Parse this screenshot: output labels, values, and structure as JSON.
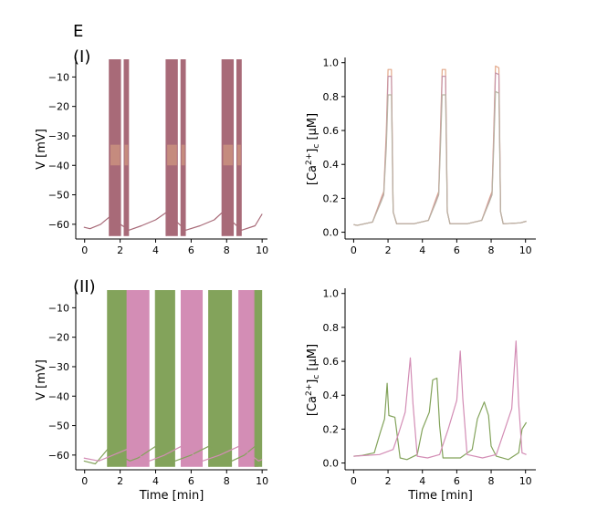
{
  "figure": {
    "panel_letter": "E",
    "row_labels": [
      "(I)",
      "(II)"
    ]
  },
  "colors": {
    "burst_main": "#a86a78",
    "burst_light": "#e9b485",
    "green": "#83a35b",
    "pink": "#d38db5",
    "ca_top": "#e3a88a",
    "ca_mid": "#c694a8",
    "ca_low": "#b9b3a3",
    "axis": "#000000"
  },
  "chart_data": [
    {
      "id": "I-voltage",
      "type": "line",
      "ylabel": "V [mV]",
      "xlabel": "",
      "xlim": [
        -0.5,
        10.3
      ],
      "ylim": [
        -65,
        -4
      ],
      "xticks": [
        0,
        2,
        4,
        6,
        8,
        10
      ],
      "yticks": [
        -60,
        -50,
        -40,
        -30,
        -20,
        -10
      ],
      "bursts": [
        {
          "name": "burst-1",
          "start": 1.4,
          "end": 2.5,
          "gap": [
            2.05,
            2.2
          ],
          "color": "#a86a78",
          "top": -4,
          "bottom": -64
        },
        {
          "name": "burst-2",
          "start": 4.6,
          "end": 5.7,
          "gap": [
            5.25,
            5.4
          ],
          "color": "#a86a78",
          "top": -4,
          "bottom": -64
        },
        {
          "name": "burst-3",
          "start": 7.75,
          "end": 8.85,
          "gap": [
            8.4,
            8.55
          ],
          "color": "#a86a78",
          "top": -4,
          "bottom": -64
        }
      ],
      "baseline": {
        "color": "#a86a78",
        "points": [
          [
            -0.05,
            -61
          ],
          [
            0.3,
            -61.5
          ],
          [
            0.9,
            -60
          ],
          [
            1.4,
            -57.5
          ],
          [
            2.5,
            -62
          ],
          [
            3.2,
            -60.5
          ],
          [
            4.0,
            -58.5
          ],
          [
            4.6,
            -56
          ],
          [
            5.7,
            -62
          ],
          [
            6.5,
            -60.5
          ],
          [
            7.3,
            -58.5
          ],
          [
            7.75,
            -56
          ],
          [
            8.85,
            -62
          ],
          [
            9.6,
            -60.5
          ],
          [
            10.0,
            -56.5
          ]
        ]
      }
    },
    {
      "id": "I-calcium",
      "type": "line",
      "ylabel": "[Ca2+]c [μM]",
      "xlabel": "",
      "xlim": [
        -0.5,
        10.6
      ],
      "ylim": [
        -0.04,
        1.02
      ],
      "xticks": [
        0,
        2,
        4,
        6,
        8,
        10
      ],
      "yticks": [
        0.0,
        0.2,
        0.4,
        0.6,
        0.8,
        1.0
      ],
      "series": [
        {
          "name": "ca-trace-top",
          "color": "#e3a88a",
          "points": [
            [
              0,
              0.045
            ],
            [
              0.2,
              0.04
            ],
            [
              1.1,
              0.06
            ],
            [
              1.6,
              0.2
            ],
            [
              1.75,
              0.24
            ],
            [
              1.9,
              0.6
            ],
            [
              2.0,
              0.96
            ],
            [
              2.2,
              0.96
            ],
            [
              2.3,
              0.12
            ],
            [
              2.5,
              0.05
            ],
            [
              3.5,
              0.05
            ],
            [
              4.35,
              0.07
            ],
            [
              4.8,
              0.2
            ],
            [
              4.95,
              0.24
            ],
            [
              5.05,
              0.6
            ],
            [
              5.15,
              0.96
            ],
            [
              5.35,
              0.96
            ],
            [
              5.45,
              0.12
            ],
            [
              5.6,
              0.05
            ],
            [
              6.6,
              0.05
            ],
            [
              7.45,
              0.07
            ],
            [
              7.9,
              0.2
            ],
            [
              8.05,
              0.24
            ],
            [
              8.15,
              0.6
            ],
            [
              8.25,
              0.98
            ],
            [
              8.45,
              0.97
            ],
            [
              8.55,
              0.12
            ],
            [
              8.7,
              0.05
            ],
            [
              9.7,
              0.055
            ],
            [
              10.05,
              0.065
            ]
          ]
        },
        {
          "name": "ca-trace-mid",
          "color": "#c694a8",
          "points": [
            [
              0,
              0.045
            ],
            [
              0.2,
              0.04
            ],
            [
              1.1,
              0.06
            ],
            [
              1.6,
              0.19
            ],
            [
              1.75,
              0.23
            ],
            [
              1.9,
              0.55
            ],
            [
              2.0,
              0.92
            ],
            [
              2.2,
              0.92
            ],
            [
              2.3,
              0.12
            ],
            [
              2.5,
              0.05
            ],
            [
              3.5,
              0.05
            ],
            [
              4.35,
              0.07
            ],
            [
              4.8,
              0.19
            ],
            [
              4.95,
              0.23
            ],
            [
              5.05,
              0.55
            ],
            [
              5.15,
              0.92
            ],
            [
              5.35,
              0.92
            ],
            [
              5.45,
              0.12
            ],
            [
              5.6,
              0.05
            ],
            [
              6.6,
              0.05
            ],
            [
              7.45,
              0.07
            ],
            [
              7.9,
              0.19
            ],
            [
              8.05,
              0.23
            ],
            [
              8.15,
              0.55
            ],
            [
              8.25,
              0.94
            ],
            [
              8.45,
              0.93
            ],
            [
              8.55,
              0.12
            ],
            [
              8.7,
              0.05
            ],
            [
              9.7,
              0.055
            ],
            [
              10.05,
              0.065
            ]
          ]
        },
        {
          "name": "ca-trace-low",
          "color": "#b9b3a3",
          "points": [
            [
              0,
              0.045
            ],
            [
              0.2,
              0.04
            ],
            [
              1.1,
              0.06
            ],
            [
              1.6,
              0.18
            ],
            [
              1.75,
              0.22
            ],
            [
              1.9,
              0.5
            ],
            [
              2.0,
              0.81
            ],
            [
              2.2,
              0.81
            ],
            [
              2.3,
              0.12
            ],
            [
              2.5,
              0.05
            ],
            [
              3.5,
              0.05
            ],
            [
              4.35,
              0.07
            ],
            [
              4.8,
              0.18
            ],
            [
              4.95,
              0.22
            ],
            [
              5.05,
              0.5
            ],
            [
              5.15,
              0.81
            ],
            [
              5.35,
              0.81
            ],
            [
              5.45,
              0.12
            ],
            [
              5.6,
              0.05
            ],
            [
              6.6,
              0.05
            ],
            [
              7.45,
              0.07
            ],
            [
              7.9,
              0.18
            ],
            [
              8.05,
              0.22
            ],
            [
              8.15,
              0.5
            ],
            [
              8.25,
              0.83
            ],
            [
              8.45,
              0.82
            ],
            [
              8.55,
              0.12
            ],
            [
              8.7,
              0.05
            ],
            [
              9.7,
              0.055
            ],
            [
              10.05,
              0.065
            ]
          ]
        }
      ]
    },
    {
      "id": "II-voltage",
      "type": "line",
      "ylabel": "V [mV]",
      "xlabel": "Time [min]",
      "xlim": [
        -0.5,
        10.3
      ],
      "ylim": [
        -65,
        -4
      ],
      "xticks": [
        0,
        2,
        4,
        6,
        8,
        10
      ],
      "yticks": [
        -60,
        -50,
        -40,
        -30,
        -20,
        -10
      ],
      "bursts": [
        {
          "name": "green-burst-1",
          "start": 1.3,
          "end": 2.55,
          "color": "#83a35b",
          "top": -4,
          "bottom": -64
        },
        {
          "name": "pink-burst-1",
          "start": 2.4,
          "end": 3.65,
          "color": "#d38db5",
          "top": -4,
          "bottom": -64
        },
        {
          "name": "green-burst-2",
          "start": 4.0,
          "end": 5.1,
          "color": "#83a35b",
          "top": -4,
          "bottom": -64
        },
        {
          "name": "pink-burst-2",
          "start": 5.45,
          "end": 6.65,
          "color": "#d38db5",
          "top": -4,
          "bottom": -64
        },
        {
          "name": "green-burst-3",
          "start": 7.0,
          "end": 8.3,
          "color": "#83a35b",
          "top": -4,
          "bottom": -64
        },
        {
          "name": "pink-burst-3",
          "start": 8.7,
          "end": 9.8,
          "color": "#d38db5",
          "top": -4,
          "bottom": -64
        },
        {
          "name": "green-burst-4",
          "start": 9.6,
          "end": 10.0,
          "color": "#83a35b",
          "top": -4,
          "bottom": -64
        }
      ],
      "series": [
        {
          "name": "green-baseline",
          "color": "#83a35b",
          "points": [
            [
              -0.05,
              -62
            ],
            [
              0.6,
              -63
            ],
            [
              1.3,
              -58
            ],
            [
              2.55,
              -62
            ],
            [
              3.0,
              -61
            ],
            [
              4.0,
              -57
            ],
            [
              5.1,
              -62
            ],
            [
              6.0,
              -60
            ],
            [
              7.0,
              -57
            ],
            [
              8.3,
              -62
            ],
            [
              9.0,
              -60
            ],
            [
              9.6,
              -57
            ]
          ]
        },
        {
          "name": "pink-baseline",
          "color": "#d38db5",
          "points": [
            [
              -0.05,
              -61
            ],
            [
              0.8,
              -62
            ],
            [
              1.6,
              -60
            ],
            [
              2.4,
              -58
            ],
            [
              3.65,
              -62
            ],
            [
              4.5,
              -60
            ],
            [
              5.45,
              -57
            ],
            [
              6.65,
              -62
            ],
            [
              7.6,
              -60
            ],
            [
              8.7,
              -57
            ],
            [
              9.8,
              -62
            ],
            [
              10.0,
              -61.5
            ]
          ]
        }
      ]
    },
    {
      "id": "II-calcium",
      "type": "line",
      "ylabel": "[Ca2+]c [μM]",
      "xlabel": "Time [min]",
      "xlim": [
        -0.5,
        10.6
      ],
      "ylim": [
        -0.04,
        1.02
      ],
      "xticks": [
        0,
        2,
        4,
        6,
        8,
        10
      ],
      "yticks": [
        0.0,
        0.2,
        0.4,
        0.6,
        0.8,
        1.0
      ],
      "series": [
        {
          "name": "ca-green",
          "color": "#83a35b",
          "points": [
            [
              0,
              0.04
            ],
            [
              0.5,
              0.045
            ],
            [
              1.2,
              0.06
            ],
            [
              1.55,
              0.18
            ],
            [
              1.8,
              0.26
            ],
            [
              1.95,
              0.47
            ],
            [
              2.05,
              0.28
            ],
            [
              2.4,
              0.27
            ],
            [
              2.7,
              0.03
            ],
            [
              3.1,
              0.02
            ],
            [
              3.7,
              0.05
            ],
            [
              4.0,
              0.2
            ],
            [
              4.4,
              0.3
            ],
            [
              4.6,
              0.49
            ],
            [
              4.85,
              0.5
            ],
            [
              5.0,
              0.22
            ],
            [
              5.2,
              0.03
            ],
            [
              6.2,
              0.03
            ],
            [
              6.9,
              0.08
            ],
            [
              7.2,
              0.26
            ],
            [
              7.6,
              0.36
            ],
            [
              7.85,
              0.28
            ],
            [
              8.0,
              0.1
            ],
            [
              8.3,
              0.04
            ],
            [
              9.0,
              0.02
            ],
            [
              9.6,
              0.06
            ],
            [
              9.8,
              0.2
            ],
            [
              10.05,
              0.24
            ]
          ]
        },
        {
          "name": "ca-pink",
          "color": "#d38db5",
          "points": [
            [
              0,
              0.04
            ],
            [
              1.5,
              0.05
            ],
            [
              2.3,
              0.08
            ],
            [
              2.6,
              0.17
            ],
            [
              3.0,
              0.3
            ],
            [
              3.3,
              0.62
            ],
            [
              3.45,
              0.35
            ],
            [
              3.7,
              0.04
            ],
            [
              4.3,
              0.03
            ],
            [
              5.0,
              0.05
            ],
            [
              5.5,
              0.2
            ],
            [
              6.0,
              0.37
            ],
            [
              6.2,
              0.66
            ],
            [
              6.35,
              0.38
            ],
            [
              6.6,
              0.05
            ],
            [
              7.5,
              0.03
            ],
            [
              8.3,
              0.05
            ],
            [
              8.8,
              0.2
            ],
            [
              9.2,
              0.32
            ],
            [
              9.45,
              0.72
            ],
            [
              9.6,
              0.35
            ],
            [
              9.8,
              0.06
            ],
            [
              10.05,
              0.05
            ]
          ]
        }
      ]
    }
  ]
}
